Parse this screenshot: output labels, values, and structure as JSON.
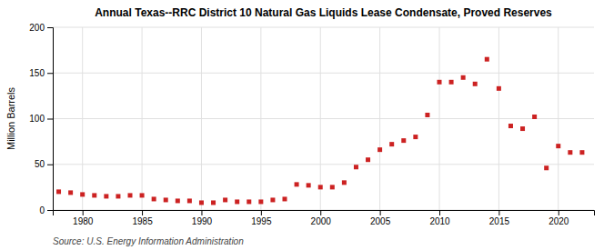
{
  "chart_data": {
    "type": "scatter",
    "title": "Annual Texas--RRC District 10 Natural Gas Liquids Lease Condensate, Proved Reserves",
    "ylabel": "Million Barrels",
    "source": "Source: U.S. Energy Information Administration",
    "color": "#cc2222",
    "marker": "square",
    "grid": true,
    "xlim": [
      1977.5,
      2023
    ],
    "ylim": [
      0,
      200
    ],
    "yticks": [
      0,
      50,
      100,
      150,
      200
    ],
    "xticks": [
      1980,
      1985,
      1990,
      1995,
      2000,
      2005,
      2010,
      2015,
      2020
    ],
    "x": [
      1978,
      1979,
      1980,
      1981,
      1982,
      1983,
      1984,
      1985,
      1986,
      1987,
      1988,
      1989,
      1990,
      1991,
      1992,
      1993,
      1994,
      1995,
      1996,
      1997,
      1998,
      1999,
      2000,
      2001,
      2002,
      2003,
      2004,
      2005,
      2006,
      2007,
      2008,
      2009,
      2010,
      2011,
      2012,
      2013,
      2014,
      2015,
      2016,
      2017,
      2018,
      2019,
      2020,
      2021,
      2022
    ],
    "values": [
      20,
      19,
      17,
      16,
      15,
      15,
      16,
      16,
      12,
      11,
      10,
      10,
      8,
      8,
      11,
      9,
      9,
      9,
      11,
      12,
      28,
      27,
      25,
      25,
      30,
      47,
      55,
      66,
      72,
      76,
      80,
      104,
      140,
      140,
      145,
      138,
      165,
      133,
      92,
      89,
      102,
      46,
      70,
      63,
      63
    ]
  }
}
